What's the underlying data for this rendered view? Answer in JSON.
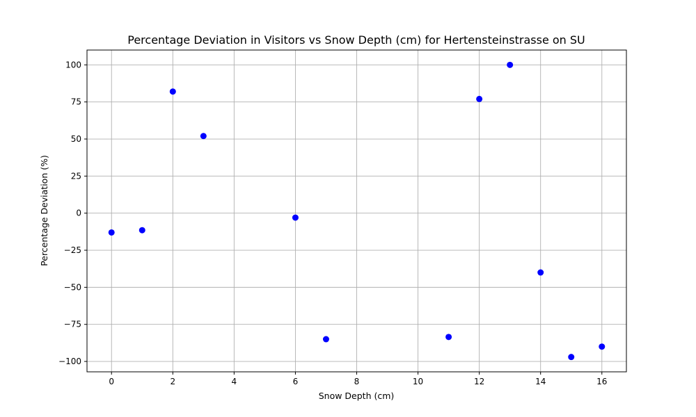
{
  "chart_data": {
    "type": "scatter",
    "title": "Percentage Deviation in Visitors vs Snow Depth (cm) for Hertensteinstrasse on SU",
    "xlabel": "Snow Depth (cm)",
    "ylabel": "Percentage Deviation (%)",
    "xlim": [
      -0.8,
      16.8
    ],
    "ylim": [
      -107,
      110
    ],
    "xticks": [
      0,
      2,
      4,
      6,
      8,
      10,
      12,
      14,
      16
    ],
    "yticks": [
      -100,
      -75,
      -50,
      -25,
      0,
      25,
      50,
      75,
      100
    ],
    "xtick_labels": [
      "0",
      "2",
      "4",
      "6",
      "8",
      "10",
      "12",
      "14",
      "16"
    ],
    "ytick_labels": [
      "−100",
      "−75",
      "−50",
      "−25",
      "0",
      "25",
      "50",
      "75",
      "100"
    ],
    "grid": true,
    "marker_color": "#0000ff",
    "points": [
      {
        "x": 0,
        "y": -13
      },
      {
        "x": 1,
        "y": -11.5
      },
      {
        "x": 2,
        "y": 82
      },
      {
        "x": 3,
        "y": 52
      },
      {
        "x": 6,
        "y": -3
      },
      {
        "x": 7,
        "y": -85
      },
      {
        "x": 11,
        "y": -83.5
      },
      {
        "x": 12,
        "y": 77
      },
      {
        "x": 13,
        "y": 100
      },
      {
        "x": 14,
        "y": -40
      },
      {
        "x": 15,
        "y": -97
      },
      {
        "x": 16,
        "y": -90
      }
    ]
  }
}
